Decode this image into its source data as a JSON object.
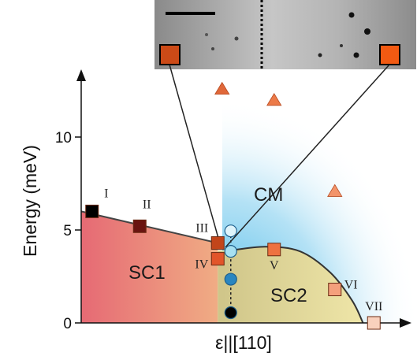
{
  "chart_data": {
    "type": "scatter",
    "title": "",
    "ylabel": "Energy (meV)",
    "xlabel": "ε||[110]",
    "ylim": [
      0,
      13.5
    ],
    "yticks": [
      0,
      5,
      10
    ],
    "grid": false,
    "regions": [
      "SC1",
      "SC2",
      "CM"
    ],
    "points": [
      {
        "label": "I",
        "x": 1.0,
        "y": 6.0,
        "marker": "square",
        "color": "#000000"
      },
      {
        "label": "II",
        "x": 2.1,
        "y": 5.2,
        "marker": "square",
        "color": "#6a1410"
      },
      {
        "label": "III",
        "x": 3.9,
        "y": 4.3,
        "marker": "square",
        "color": "#c2451a"
      },
      {
        "label": "IV",
        "x": 3.9,
        "y": 3.45,
        "marker": "square",
        "color": "#e2552a"
      },
      {
        "label": "V",
        "x": 5.2,
        "y": 3.95,
        "marker": "square",
        "color": "#ee7240"
      },
      {
        "label": "VI",
        "x": 6.6,
        "y": 1.8,
        "marker": "square",
        "color": "#f4a07c"
      },
      {
        "label": "VII",
        "x": 7.5,
        "y": 0.0,
        "marker": "square",
        "color": "#f9d1bd"
      }
    ],
    "triangles": [
      {
        "x": 4.0,
        "y": 12.6,
        "color": "#e0683a"
      },
      {
        "x": 5.2,
        "y": 12.0,
        "color": "#ec7a48"
      },
      {
        "x": 6.6,
        "y": 7.1,
        "color": "#f2946a"
      }
    ],
    "circles": [
      {
        "x": 4.2,
        "y": 4.95,
        "color": "#dff4fb"
      },
      {
        "x": 4.2,
        "y": 3.85,
        "color": "#a7e0f1"
      },
      {
        "x": 4.2,
        "y": 2.35,
        "color": "#2a86c0"
      },
      {
        "x": 4.2,
        "y": 0.55,
        "color": "#000000"
      }
    ],
    "sc1_boundary": [
      [
        0.75,
        6.0
      ],
      [
        3.9,
        4.3
      ]
    ],
    "sc2_boundary": [
      [
        4.2,
        3.9
      ],
      [
        5.0,
        4.1
      ],
      [
        5.8,
        3.85
      ],
      [
        6.5,
        2.7
      ],
      [
        7.0,
        1.2
      ],
      [
        7.25,
        0.0
      ]
    ],
    "colors": {
      "sc1": "#e67a7c",
      "sc2": "#d9cf92",
      "cm": "#a2dcf2",
      "inset_marker": "#cc4a17"
    }
  },
  "inset": {
    "name": "microscopy-image",
    "divider_style": "dotted",
    "has_scale_bar": true
  }
}
